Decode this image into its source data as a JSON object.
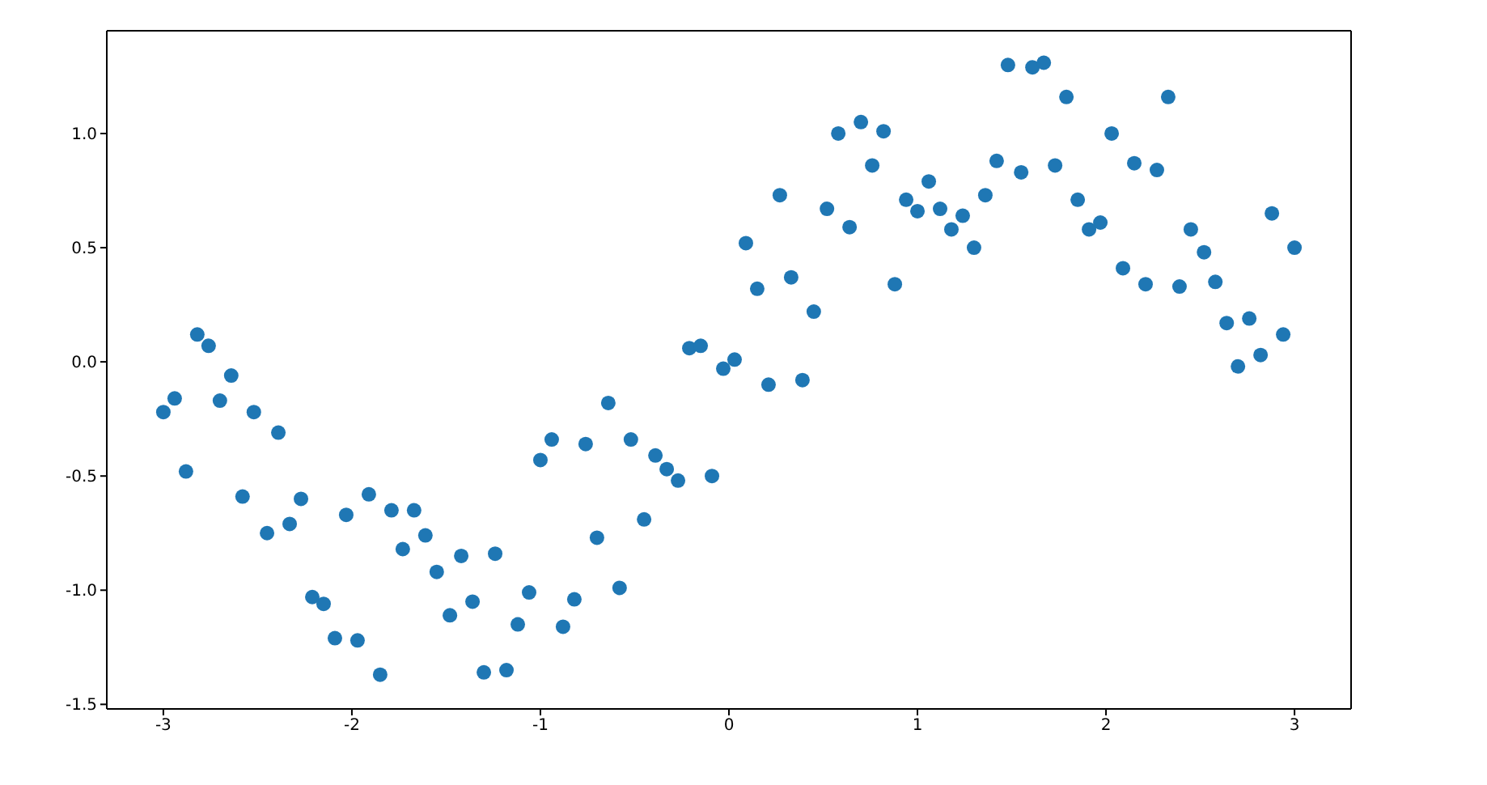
{
  "chart_data": {
    "type": "scatter",
    "color": "#1f77b4",
    "marker": "circle",
    "grid": false,
    "legend": false,
    "x": [
      -3,
      -2.94,
      -2.88,
      -2.82,
      -2.76,
      -2.7,
      -2.64,
      -2.58,
      -2.52,
      -2.45,
      -2.39,
      -2.33,
      -2.27,
      -2.21,
      -2.15,
      -2.09,
      -2.03,
      -1.97,
      -1.91,
      -1.85,
      -1.79,
      -1.73,
      -1.67,
      -1.61,
      -1.55,
      -1.48,
      -1.42,
      -1.36,
      -1.3,
      -1.24,
      -1.18,
      -1.12,
      -1.06,
      -1.0,
      -0.94,
      -0.88,
      -0.82,
      -0.76,
      -0.7,
      -0.64,
      -0.58,
      -0.52,
      -0.45,
      -0.39,
      -0.33,
      -0.27,
      -0.21,
      -0.15,
      -0.09,
      -0.03,
      0.03,
      0.09,
      0.15,
      0.21,
      0.27,
      0.33,
      0.39,
      0.45,
      0.52,
      0.58,
      0.64,
      0.7,
      0.76,
      0.82,
      0.88,
      0.94,
      1.0,
      1.06,
      1.12,
      1.18,
      1.24,
      1.3,
      1.36,
      1.42,
      1.48,
      1.55,
      1.61,
      1.67,
      1.73,
      1.79,
      1.85,
      1.91,
      1.97,
      2.03,
      2.09,
      2.15,
      2.21,
      2.27,
      2.33,
      2.39,
      2.45,
      2.52,
      2.58,
      2.64,
      2.7,
      2.76,
      2.82,
      2.88,
      2.94,
      3
    ],
    "values": [
      -0.22,
      -0.16,
      -0.48,
      0.12,
      0.07,
      -0.17,
      -0.06,
      -0.59,
      -0.22,
      -0.75,
      -0.31,
      -0.71,
      -0.6,
      -1.03,
      -1.06,
      -1.21,
      -0.67,
      -1.22,
      -0.58,
      -1.37,
      -0.65,
      -0.82,
      -0.65,
      -0.76,
      -0.92,
      -1.11,
      -0.85,
      -1.05,
      -1.36,
      -0.84,
      -1.35,
      -1.15,
      -1.01,
      -0.43,
      -0.34,
      -1.16,
      -1.04,
      -0.36,
      -0.77,
      -0.18,
      -0.99,
      -0.34,
      -0.69,
      -0.41,
      -0.47,
      -0.52,
      0.06,
      0.07,
      -0.5,
      -0.03,
      0.01,
      0.52,
      0.32,
      -0.1,
      0.73,
      0.37,
      -0.08,
      0.22,
      0.67,
      1.0,
      0.59,
      1.05,
      0.86,
      1.01,
      0.34,
      0.71,
      0.66,
      0.79,
      0.67,
      0.58,
      0.64,
      0.5,
      0.73,
      0.88,
      1.3,
      0.83,
      1.29,
      1.31,
      0.86,
      1.16,
      0.71,
      0.58,
      0.61,
      1.0,
      0.41,
      0.87,
      0.34,
      0.84,
      1.16,
      0.33,
      0.58,
      0.48,
      0.35,
      0.17,
      -0.02,
      0.19,
      0.03,
      0.65,
      0.12,
      0.5
    ],
    "xlim": [
      -3.3,
      3.3
    ],
    "ylim": [
      -1.52,
      1.45
    ],
    "xticks": [
      -3,
      -2,
      -1,
      0,
      1,
      2,
      3
    ],
    "yticks": [
      -1.5,
      {
        "value": -1,
        "label": "-1.0"
      },
      -0.5,
      {
        "value": 0,
        "label": "0.0"
      },
      0.5,
      {
        "value": 1,
        "label": "1.0"
      }
    ]
  }
}
